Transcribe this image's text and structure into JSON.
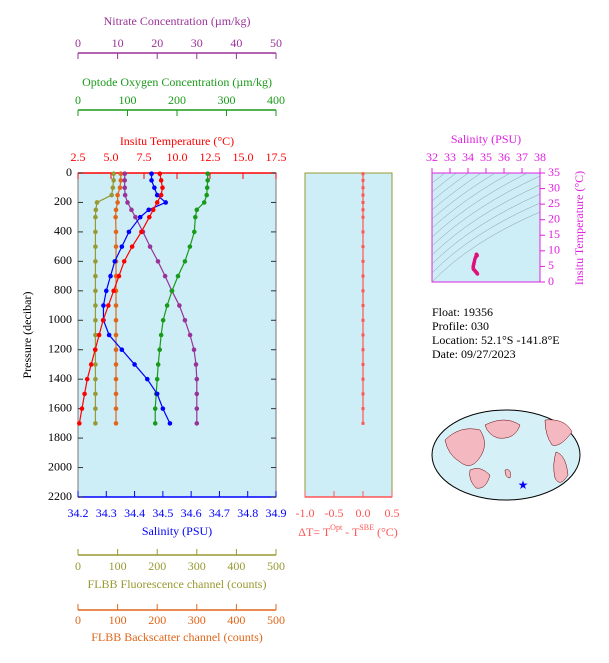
{
  "chart_data": [
    {
      "type": "profile",
      "y_label": "Pressure (decibar)",
      "ylim": [
        0,
        2200
      ],
      "yticks": [
        0,
        200,
        400,
        600,
        800,
        1000,
        1200,
        1400,
        1600,
        1800,
        2000,
        2200
      ],
      "pressure": [
        5,
        50,
        100,
        150,
        200,
        250,
        300,
        400,
        500,
        600,
        700,
        800,
        900,
        1000,
        1100,
        1200,
        1300,
        1400,
        1500,
        1600,
        1700
      ],
      "axes": [
        {
          "title": "Nitrate Concentration (µm/kg)",
          "color": "#993399",
          "xlim": [
            0,
            50
          ],
          "xticks": [
            0,
            10,
            20,
            30,
            40,
            50
          ]
        },
        {
          "title": "Optode Oxygen Concentration (µm/kg)",
          "color": "#1a9a1a",
          "xlim": [
            0,
            400
          ],
          "xticks": [
            0,
            100,
            200,
            300,
            400
          ]
        },
        {
          "title": "Insitu Temperature (°C)",
          "color": "#ff0000",
          "xlim": [
            2.5,
            17.5
          ],
          "xticks": [
            2.5,
            {
              "value": 5,
              "label": "5.0"
            },
            7.5,
            {
              "value": 10,
              "label": "10.0"
            },
            12.5,
            {
              "value": 15,
              "label": "15.0"
            },
            17.5
          ]
        },
        {
          "title": "Salinity (PSU)",
          "color": "#0000ff",
          "xlim": [
            34.2,
            34.9
          ],
          "xticks": [
            34.2,
            34.3,
            34.4,
            34.5,
            34.6,
            34.7,
            34.8,
            34.9
          ]
        },
        {
          "title": "FLBB Fluorescence channel (counts)",
          "color": "#999933",
          "xlim": [
            0,
            500
          ],
          "xticks": [
            0,
            100,
            200,
            300,
            400,
            500
          ]
        },
        {
          "title": "FLBB Backscatter channel (counts)",
          "color": "#e0661a",
          "xlim": [
            0,
            500
          ],
          "xticks": [
            0,
            100,
            200,
            300,
            400,
            500
          ]
        }
      ],
      "series": [
        {
          "axis": 4,
          "color": "#999933",
          "values": [
            90,
            90,
            88,
            85,
            48,
            45,
            44,
            44,
            44,
            44,
            44,
            44,
            44,
            44,
            44,
            44,
            44,
            44,
            44,
            44,
            44
          ]
        },
        {
          "axis": 5,
          "color": "#e0661a",
          "values": [
            108,
            108,
            106,
            100,
            100,
            96,
            95,
            96,
            96,
            96,
            96,
            96,
            96,
            96,
            96,
            96,
            96,
            96,
            96,
            96,
            96
          ]
        },
        {
          "axis": 0,
          "color": "#993399",
          "values": [
            11.8,
            11.8,
            11.8,
            11.9,
            12.5,
            13.5,
            14.5,
            16.4,
            18.2,
            20.2,
            22,
            23.7,
            25.6,
            27,
            28.3,
            29.3,
            29.8,
            30,
            30,
            30,
            30
          ]
        },
        {
          "axis": 1,
          "color": "#1a9a1a",
          "values": [
            262,
            262,
            261,
            260,
            255,
            240,
            237,
            235,
            226,
            216,
            202,
            190,
            180,
            172,
            168,
            165,
            162,
            160,
            158,
            156,
            156
          ]
        },
        {
          "axis": 3,
          "color": "#0000ff",
          "values": [
            34.46,
            34.46,
            34.47,
            34.48,
            34.51,
            34.45,
            34.42,
            34.38,
            34.355,
            34.33,
            34.315,
            34.3,
            34.29,
            34.29,
            34.31,
            34.355,
            34.4,
            34.445,
            34.48,
            34.5,
            34.525
          ]
        },
        {
          "axis": 2,
          "color": "#ff0000",
          "values": [
            8.7,
            8.8,
            8.9,
            8.8,
            8.5,
            8.2,
            7.9,
            7.3,
            6.6,
            6,
            5.6,
            5.2,
            4.8,
            4.4,
            4.1,
            3.8,
            3.5,
            3.2,
            3,
            2.8,
            2.6
          ]
        }
      ]
    },
    {
      "type": "delta_profile",
      "title_parts": [
        "ΔT= T",
        "Opt",
        " - T",
        "SBE",
        " (°C)"
      ],
      "color": "#ff5555",
      "xlim": [
        -1,
        0.5
      ],
      "xticks": [
        {
          "value": -1,
          "label": "-1.0"
        },
        -0.5,
        {
          "value": 0,
          "label": "0.0"
        },
        0.5
      ],
      "ylim": [
        0,
        2200
      ],
      "pressure": [
        5,
        50,
        100,
        150,
        200,
        250,
        300,
        400,
        500,
        600,
        700,
        800,
        900,
        1000,
        1100,
        1200,
        1300,
        1400,
        1500,
        1600,
        1700
      ],
      "values": [
        0,
        0,
        0,
        0,
        0,
        0,
        0,
        0,
        0,
        0,
        0,
        0,
        0,
        0,
        0,
        0,
        0,
        0,
        0,
        0,
        0
      ]
    },
    {
      "type": "ts",
      "x_label": "Salinity (PSU)",
      "y_label": "Insitu Temperature (°C)",
      "color": "#e0107a",
      "xlim": [
        32,
        38
      ],
      "xticks": [
        32,
        33,
        34,
        35,
        36,
        37,
        38
      ],
      "ylim": [
        0,
        35
      ],
      "yticks": [
        0,
        5,
        10,
        15,
        20,
        25,
        30,
        35
      ],
      "salinity": [
        34.46,
        34.47,
        34.48,
        34.51,
        34.45,
        34.42,
        34.38,
        34.355,
        34.33,
        34.315,
        34.3,
        34.29,
        34.29,
        34.31,
        34.355,
        34.4,
        34.445,
        34.48,
        34.5,
        34.525
      ],
      "temperature": [
        8.7,
        8.9,
        8.8,
        8.5,
        8.2,
        7.9,
        7.3,
        6.6,
        6,
        5.6,
        5.2,
        4.8,
        4.4,
        4.1,
        3.8,
        3.5,
        3.2,
        3,
        2.8,
        2.6
      ]
    }
  ],
  "float_info": [
    "Float:  19356",
    "Profile:  030",
    "Location:  52.1°S  -141.8°E",
    "Date:  09/27/2023"
  ]
}
